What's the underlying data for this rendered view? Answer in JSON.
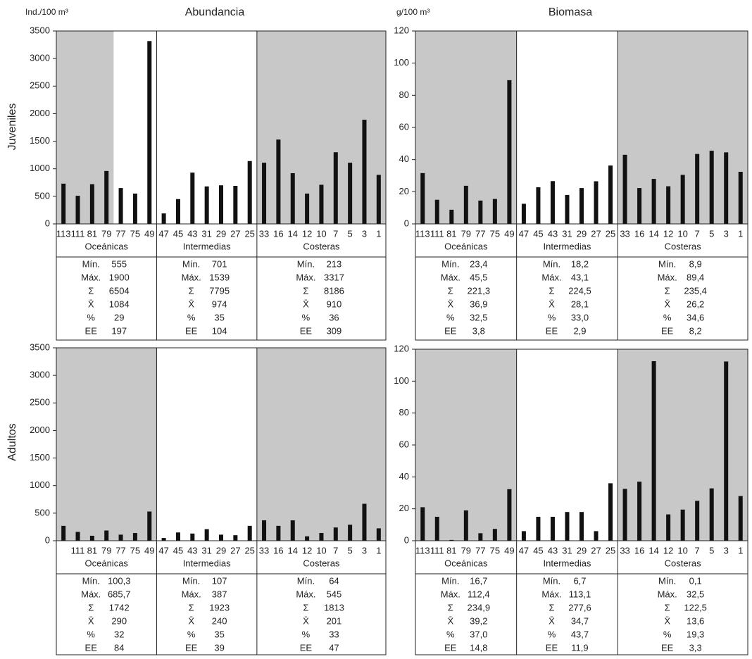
{
  "column_titles": [
    "Abundancia",
    "Biomasa"
  ],
  "units": [
    "Ind./100 m³",
    "g/100 m³"
  ],
  "row_labels": [
    "Juveniles",
    "Adultos"
  ],
  "stat_labels": [
    "Mín.",
    "Máx.",
    "Σ",
    "X̄",
    "%",
    "EE"
  ],
  "chart_data": [
    {
      "type": "bar",
      "color": "#111111",
      "ylim": [
        0,
        3500
      ],
      "yticks": [
        0,
        500,
        1000,
        1500,
        2000,
        2500,
        3000,
        3500
      ],
      "groups": [
        {
          "name": "Oceánicas",
          "background": [
            "#c8c8c8",
            "#c8c8c8",
            "#c8c8c8",
            "#c8c8c8",
            "#ffffff",
            "#ffffff",
            "#ffffff"
          ],
          "categories": [
            "113",
            "111",
            "81",
            "79",
            "77",
            "75",
            "49"
          ],
          "values": [
            730,
            510,
            720,
            960,
            650,
            550,
            3317
          ],
          "stats": [
            "555",
            "1900",
            "6504",
            "1084",
            "29",
            "197"
          ]
        },
        {
          "name": "Intermedias",
          "background": "#ffffff",
          "categories": [
            "47",
            "45",
            "43",
            "31",
            "29",
            "27",
            "25"
          ],
          "values": [
            190,
            450,
            930,
            680,
            700,
            690,
            1140
          ],
          "stats": [
            "701",
            "1539",
            "7795",
            "974",
            "35",
            "104"
          ]
        },
        {
          "name": "Costeras",
          "background": "#c8c8c8",
          "categories": [
            "33",
            "16",
            "14",
            "12",
            "10",
            "7",
            "5",
            "3",
            "1"
          ],
          "values": [
            1110,
            1530,
            920,
            550,
            710,
            1300,
            1110,
            1890,
            890
          ],
          "stats": [
            "213",
            "3317",
            "8186",
            "910",
            "36",
            "309"
          ]
        }
      ]
    },
    {
      "type": "bar",
      "color": "#111111",
      "ylim": [
        0,
        120
      ],
      "yticks": [
        0,
        20,
        40,
        60,
        80,
        100,
        120
      ],
      "groups": [
        {
          "name": "Oceánicas",
          "background": "#c8c8c8",
          "categories": [
            "113",
            "111",
            "81",
            "79",
            "77",
            "75",
            "49"
          ],
          "values": [
            31.6,
            15,
            8.8,
            23.7,
            14.5,
            15.5,
            89.4
          ],
          "stats": [
            "23,4",
            "45,5",
            "221,3",
            "36,9",
            "32,5",
            "3,8"
          ]
        },
        {
          "name": "Intermedias",
          "background": "#ffffff",
          "categories": [
            "47",
            "45",
            "43",
            "31",
            "29",
            "27",
            "25"
          ],
          "values": [
            12.5,
            22.8,
            26.6,
            18,
            22.3,
            26.5,
            36.3
          ],
          "stats": [
            "18,2",
            "43,1",
            "224,5",
            "28,1",
            "33,0",
            "2,9"
          ]
        },
        {
          "name": "Costeras",
          "background": "#c8c8c8",
          "categories": [
            "33",
            "16",
            "14",
            "12",
            "10",
            "7",
            "5",
            "3",
            "1"
          ],
          "values": [
            43,
            22.3,
            28,
            23.4,
            30.5,
            43.5,
            45.5,
            44.5,
            32.4
          ],
          "stats": [
            "8,9",
            "89,4",
            "235,4",
            "26,2",
            "34,6",
            "8,2"
          ]
        }
      ]
    },
    {
      "type": "bar",
      "color": "#111111",
      "ylim": [
        0,
        3500
      ],
      "yticks": [
        0,
        500,
        1000,
        1500,
        2000,
        2500,
        3000,
        3500
      ],
      "groups": [
        {
          "name": "Oceánicas",
          "background": "#c8c8c8",
          "categories": [
            null,
            "111",
            "81",
            "79",
            "77",
            "75",
            "49"
          ],
          "values": [
            270,
            160,
            90,
            185,
            110,
            140,
            530
          ],
          "stats": [
            "100,3",
            "685,7",
            "1742",
            "290",
            "32",
            "84"
          ]
        },
        {
          "name": "Intermedias",
          "background": "#ffffff",
          "categories": [
            "47",
            "45",
            "43",
            "31",
            "29",
            "27",
            "25"
          ],
          "values": [
            50,
            150,
            130,
            210,
            110,
            100,
            270
          ],
          "stats": [
            "107",
            "387",
            "1923",
            "240",
            "35",
            "39"
          ]
        },
        {
          "name": "Costeras",
          "background": "#c8c8c8",
          "categories": [
            "33",
            "16",
            "14",
            "12",
            "10",
            "7",
            "5",
            "3",
            "1"
          ],
          "values": [
            370,
            270,
            370,
            80,
            140,
            240,
            290,
            670,
            225
          ],
          "stats": [
            "64",
            "545",
            "1813",
            "201",
            "33",
            "47"
          ]
        }
      ]
    },
    {
      "type": "bar",
      "color": "#111111",
      "ylim": [
        0,
        120
      ],
      "yticks": [
        0,
        20,
        40,
        60,
        80,
        100,
        120
      ],
      "groups": [
        {
          "name": "Oceánicas",
          "background": "#c8c8c8",
          "categories": [
            "113",
            "111",
            "81",
            "79",
            "77",
            "75",
            "49"
          ],
          "values": [
            21,
            15,
            0.5,
            19,
            4.7,
            7.4,
            32.3
          ],
          "stats": [
            "16,7",
            "112,4",
            "234,9",
            "39,2",
            "37,0",
            "14,8"
          ]
        },
        {
          "name": "Intermedias",
          "background": "#ffffff",
          "categories": [
            "47",
            "45",
            "43",
            "31",
            "29",
            "27",
            "25"
          ],
          "values": [
            6,
            15,
            15,
            18,
            18,
            6,
            36
          ],
          "stats": [
            "6,7",
            "113,1",
            "277,6",
            "34,7",
            "43,7",
            "11,9"
          ]
        },
        {
          "name": "Costeras",
          "background": "#c8c8c8",
          "categories": [
            "33",
            "16",
            "14",
            "12",
            "10",
            "7",
            "5",
            "3",
            "1"
          ],
          "values": [
            32.5,
            37,
            112.5,
            16.5,
            19.5,
            25,
            32.8,
            112.3,
            28
          ],
          "stats": [
            "0,1",
            "32,5",
            "122,5",
            "13,6",
            "19,3",
            "3,3"
          ]
        }
      ]
    }
  ]
}
